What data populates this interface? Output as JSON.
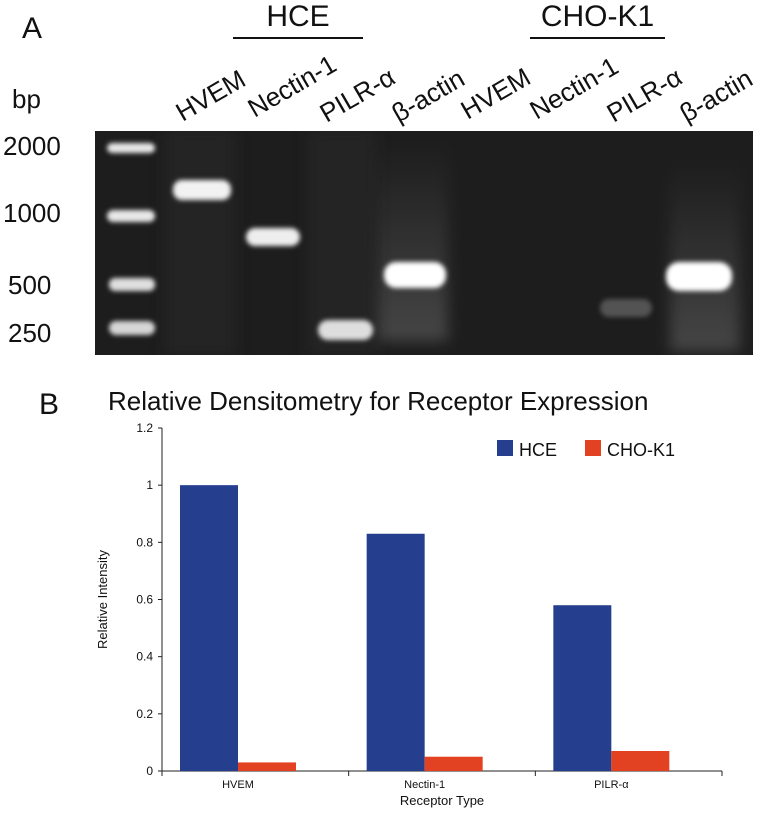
{
  "panel_a": {
    "letter": "A",
    "groups": [
      {
        "name": "HCE"
      },
      {
        "name": "CHO-K1"
      }
    ],
    "lane_labels": [
      "HVEM",
      "Nectin-1",
      "PILR-α",
      "β-actin",
      "HVEM",
      "Nectin-1",
      "PILR-α",
      "β-actin"
    ],
    "bp_unit": "bp",
    "bp_markers": [
      "2000",
      "1000",
      "500",
      "250"
    ],
    "bands": [
      {
        "lane": "ladder",
        "bp": "2000"
      },
      {
        "lane": "ladder",
        "bp": "1000"
      },
      {
        "lane": "ladder",
        "bp": "500"
      },
      {
        "lane": "ladder",
        "bp": "250"
      },
      {
        "lane": "HCE HVEM",
        "intensity": "strong"
      },
      {
        "lane": "HCE Nectin-1",
        "intensity": "strong"
      },
      {
        "lane": "HCE PILR-α",
        "intensity": "strong"
      },
      {
        "lane": "HCE β-actin",
        "intensity": "strong"
      },
      {
        "lane": "CHO-K1 PILR-α",
        "intensity": "faint"
      },
      {
        "lane": "CHO-K1 β-actin",
        "intensity": "strong"
      }
    ]
  },
  "panel_b": {
    "letter": "B"
  },
  "chart_data": {
    "type": "bar",
    "title": "Relative Densitometry for Receptor Expression",
    "xlabel": "Receptor Type",
    "ylabel": "Relative Intensity",
    "categories": [
      "HVEM",
      "Nectin-1",
      "PILR-α"
    ],
    "series": [
      {
        "name": "HCE",
        "color": "#253f8e",
        "values": [
          1.0,
          0.83,
          0.58
        ]
      },
      {
        "name": "CHO-K1",
        "color": "#e34222",
        "values": [
          0.03,
          0.05,
          0.07
        ]
      }
    ],
    "ylim": [
      0,
      1.2
    ],
    "yticks": [
      "0",
      "0.2",
      "0.4",
      "0.6",
      "0.8",
      "1",
      "1.2"
    ],
    "grid": false,
    "legend_position": "top-right"
  }
}
